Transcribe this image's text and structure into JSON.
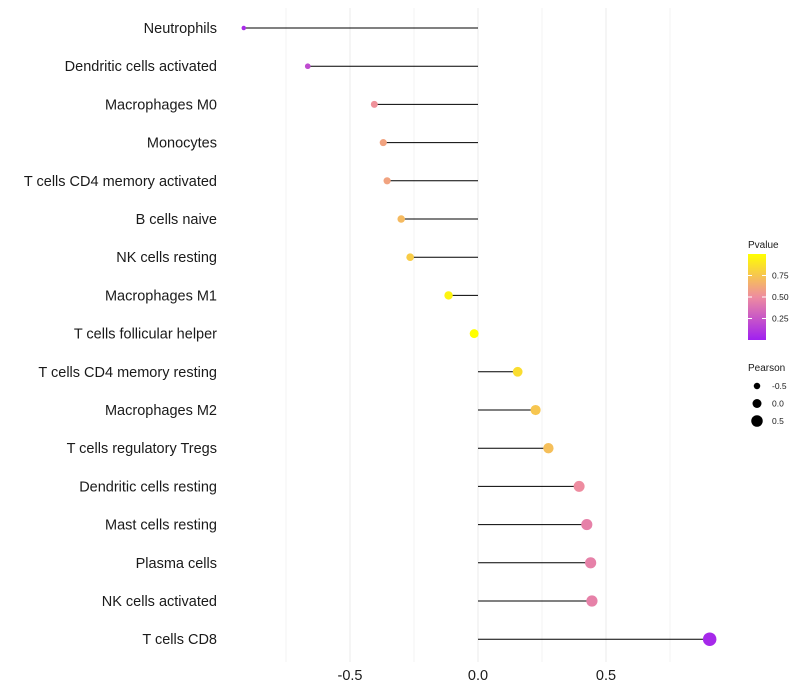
{
  "chart_data": {
    "type": "lollipop",
    "title": "",
    "xlabel": "",
    "ylabel": "",
    "xlim": [
      -0.75,
      0.9
    ],
    "x_ticks": [
      -0.5,
      0.0,
      0.5
    ],
    "x_tick_labels": [
      "-0.5",
      "0.0",
      "0.5"
    ],
    "grid": "vertical",
    "baseline": 0,
    "categories": [
      "Neutrophils",
      "Dendritic cells activated",
      "Macrophages M0",
      "Monocytes",
      "T cells CD4 memory activated",
      "B cells naive",
      "NK cells resting",
      "Macrophages M1",
      "T cells follicular helper",
      "T cells CD4 memory resting",
      "Macrophages M2",
      "T cells regulatory  Tregs ",
      "Dendritic cells resting",
      "Mast cells resting",
      "Plasma cells",
      "NK cells activated",
      "T cells CD8"
    ],
    "pearson": [
      -0.915,
      -0.665,
      -0.405,
      -0.37,
      -0.355,
      -0.3,
      -0.265,
      -0.115,
      -0.015,
      0.155,
      0.225,
      0.275,
      0.395,
      0.425,
      0.44,
      0.445,
      0.905
    ],
    "pvalue": [
      0.05,
      0.2,
      0.52,
      0.6,
      0.6,
      0.7,
      0.78,
      0.95,
      1.0,
      0.85,
      0.75,
      0.72,
      0.5,
      0.45,
      0.45,
      0.45,
      0.04
    ],
    "legend_pvalue": {
      "title": "Pvalue",
      "ticks": [
        0.25,
        0.5,
        0.75
      ],
      "tick_labels": [
        "0.25",
        "0.50",
        "0.75"
      ],
      "range": [
        0.0,
        1.0
      ],
      "color_low": "#a020f0",
      "color_mid": "#ee8ca0",
      "color_high": "#ffff00"
    },
    "legend_pearson": {
      "title": "Pearson",
      "values": [
        -0.5,
        0.0,
        0.5
      ],
      "labels": [
        "-0.5",
        "0.0",
        "0.5"
      ]
    },
    "colors": {
      "stem": "#000000",
      "grid": "#ebebeb"
    }
  }
}
